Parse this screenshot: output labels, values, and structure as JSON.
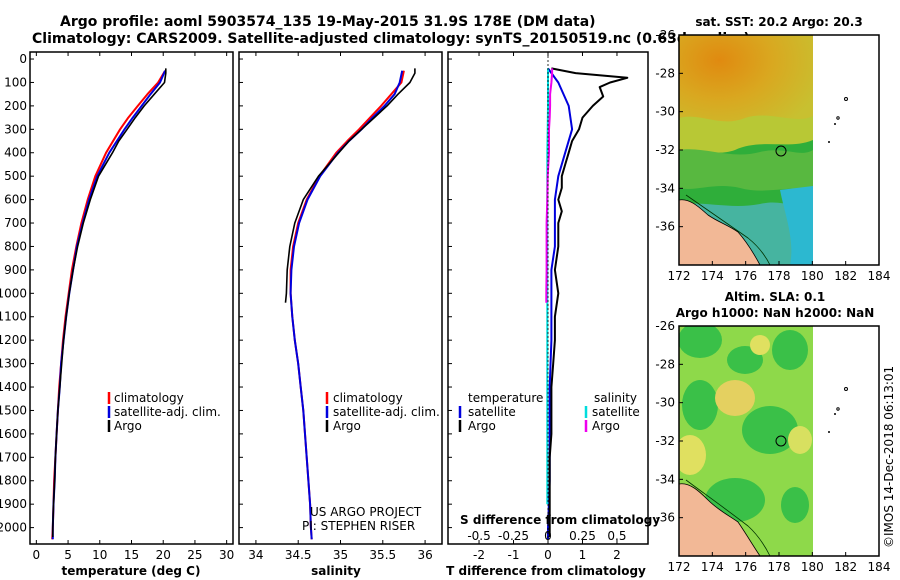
{
  "title_line1": "Argo profile: aoml 5903574_135 19-May-2015 31.9S 178E (DM data)",
  "title_line2": "Climatology: CARS2009. Satellite-adjusted climatology: synTS_20150519.nc (0.63d earlier)",
  "colors": {
    "climatology": "#ff0000",
    "satellite": "#0000dd",
    "argo": "#000000",
    "sal_sat": "#00dddd",
    "sal_argo": "#ee00ee"
  },
  "depth_ticks": [
    0,
    100,
    200,
    300,
    400,
    500,
    600,
    700,
    800,
    900,
    1000,
    1100,
    1200,
    1300,
    1400,
    1500,
    1600,
    1700,
    1800,
    1900,
    2000
  ],
  "legend": {
    "climatology": "climatology",
    "satellite": "satellite-adj. clim.",
    "argo": "Argo"
  },
  "diff_legend": {
    "temperature": "temperature",
    "salinity": "salinity",
    "satellite": "satellite",
    "argo": "Argo"
  },
  "credit_line1": "US ARGO PROJECT",
  "credit_line2": "PI: STEPHEN RISER",
  "s_diff_title": "S difference from climatology",
  "map1_title": "sat. SST: 20.2 Argo: 20.3",
  "map2_title1": "Altim. SLA: 0.1",
  "map2_title2": "Argo h1000: NaN h2000: NaN",
  "stamp": "©IMOS 14-Dec-2018 06:13:01",
  "chart_data": [
    {
      "type": "line",
      "name": "temperature-panel",
      "xlabel": "temperature (deg C)",
      "ylabel": "",
      "xlim": [
        -1,
        31
      ],
      "ylim": [
        2070,
        -30
      ],
      "xticks": [
        0,
        5,
        10,
        15,
        20,
        25,
        30
      ],
      "series": [
        {
          "name": "climatology",
          "depth": [
            50,
            100,
            150,
            200,
            250,
            300,
            400,
            500,
            600,
            700,
            800,
            900,
            1000,
            1100,
            1200,
            1300,
            1400,
            1500,
            1600,
            1700,
            1800,
            1900,
            2000,
            2050
          ],
          "values": [
            20.3,
            19.2,
            17.5,
            16.0,
            14.5,
            13.2,
            11.0,
            9.3,
            8.1,
            7.1,
            6.3,
            5.6,
            5.1,
            4.6,
            4.2,
            3.9,
            3.6,
            3.4,
            3.2,
            3.0,
            2.8,
            2.7,
            2.6,
            2.5
          ]
        },
        {
          "name": "satellite-adj. clim.",
          "depth": [
            50,
            100,
            150,
            200,
            250,
            300,
            400,
            500,
            600,
            700,
            800,
            900,
            1000,
            1100,
            1200,
            1300,
            1400,
            1500,
            1600,
            1700,
            1800,
            1900,
            2000,
            2050
          ],
          "values": [
            20.3,
            19.5,
            18.0,
            16.6,
            15.2,
            13.9,
            11.5,
            9.6,
            8.3,
            7.3,
            6.4,
            5.8,
            5.2,
            4.7,
            4.3,
            3.9,
            3.7,
            3.4,
            3.2,
            3.0,
            2.9,
            2.7,
            2.6,
            2.6
          ]
        },
        {
          "name": "Argo",
          "depth": [
            40,
            60,
            100,
            150,
            200,
            250,
            300,
            350,
            400,
            500,
            600,
            700,
            800,
            900,
            1000,
            1100,
            1200,
            1300,
            1400,
            1500,
            1600,
            1700,
            1800,
            1900,
            2000,
            2040
          ],
          "values": [
            20.4,
            20.4,
            20.2,
            18.6,
            17.0,
            15.6,
            14.3,
            13.0,
            12.0,
            9.8,
            8.5,
            7.4,
            6.5,
            5.8,
            5.2,
            4.7,
            4.3,
            4.0,
            3.7,
            3.4,
            3.2,
            3.0,
            2.9,
            2.7,
            2.6,
            2.6
          ]
        }
      ]
    },
    {
      "type": "line",
      "name": "salinity-panel",
      "xlabel": "salinity",
      "ylabel": "",
      "xlim": [
        33.8,
        36.2
      ],
      "ylim": [
        2070,
        -30
      ],
      "xticks": [
        34,
        34.5,
        35,
        35.5,
        36
      ],
      "series": [
        {
          "name": "climatology",
          "depth": [
            50,
            100,
            150,
            200,
            250,
            300,
            350,
            400,
            500,
            600,
            700,
            800,
            900,
            1000,
            1100,
            1200,
            1300,
            1400,
            1500,
            1600,
            1700,
            1800,
            1900,
            2000,
            2050
          ],
          "values": [
            35.75,
            35.72,
            35.6,
            35.48,
            35.35,
            35.22,
            35.08,
            34.95,
            34.75,
            34.6,
            34.5,
            34.44,
            34.41,
            34.41,
            34.43,
            34.46,
            34.5,
            34.53,
            34.56,
            34.58,
            34.6,
            34.62,
            34.64,
            34.65,
            34.66
          ]
        },
        {
          "name": "satellite-adj. clim.",
          "depth": [
            50,
            100,
            150,
            200,
            250,
            300,
            350,
            400,
            500,
            600,
            700,
            800,
            900,
            1000,
            1100,
            1200,
            1300,
            1400,
            1500,
            1600,
            1700,
            1800,
            1900,
            2000,
            2050
          ],
          "values": [
            35.73,
            35.7,
            35.64,
            35.52,
            35.38,
            35.25,
            35.1,
            34.97,
            34.76,
            34.61,
            34.51,
            34.45,
            34.42,
            34.41,
            34.43,
            34.46,
            34.5,
            34.53,
            34.56,
            34.58,
            34.6,
            34.62,
            34.64,
            34.65,
            34.66
          ]
        },
        {
          "name": "Argo",
          "depth": [
            40,
            60,
            100,
            150,
            200,
            250,
            300,
            350,
            400,
            500,
            600,
            700,
            800,
            900,
            1000,
            1040
          ],
          "values": [
            35.88,
            35.88,
            35.82,
            35.68,
            35.55,
            35.4,
            35.25,
            35.1,
            34.98,
            34.74,
            34.56,
            34.46,
            34.4,
            34.37,
            34.36,
            34.35
          ]
        }
      ]
    },
    {
      "type": "line",
      "name": "difference-panel",
      "xlabel": "T difference from climatology",
      "ylabel": "",
      "xlim": [
        -2.9,
        2.9
      ],
      "ylim": [
        2070,
        -30
      ],
      "xticks": [
        -2,
        -1,
        0,
        1,
        2
      ],
      "top_label": "S difference from climatology",
      "top_ticks": [
        -0.5,
        -0.25,
        0,
        0.25,
        0.5
      ],
      "series": [
        {
          "name": "temperature satellite",
          "depth": [
            40,
            100,
            200,
            300,
            400,
            500,
            600,
            700,
            800,
            900,
            1000,
            1200,
            1400,
            1600,
            1800,
            2000,
            2050
          ],
          "values": [
            0.0,
            0.3,
            0.6,
            0.7,
            0.5,
            0.3,
            0.2,
            0.2,
            0.2,
            0.1,
            0.1,
            0.1,
            0.05,
            0.05,
            0.05,
            0.0,
            0.0
          ]
        },
        {
          "name": "temperature Argo",
          "depth": [
            40,
            60,
            80,
            100,
            120,
            160,
            200,
            250,
            300,
            350,
            400,
            450,
            500,
            550,
            600,
            650,
            700,
            800,
            900,
            1000,
            1100,
            1200,
            1300,
            1400,
            1500,
            1600,
            1700,
            1800,
            1900,
            2000,
            2040
          ],
          "values": [
            0.1,
            0.8,
            2.3,
            1.8,
            1.5,
            1.6,
            1.3,
            1.0,
            0.9,
            0.7,
            0.6,
            0.5,
            0.4,
            0.4,
            0.3,
            0.4,
            0.3,
            0.3,
            0.2,
            0.3,
            0.2,
            0.2,
            0.15,
            0.1,
            0.1,
            0.1,
            0.05,
            0.05,
            0.05,
            0.05,
            0.05
          ]
        },
        {
          "name": "salinity satellite",
          "depth": [
            40,
            100,
            200,
            300,
            400,
            500,
            600,
            700,
            800,
            900,
            1000,
            1200,
            1400,
            1600,
            1800,
            1900
          ],
          "values": [
            0.0,
            0.0,
            0.0,
            -0.01,
            -0.02,
            -0.02,
            -0.02,
            -0.02,
            -0.02,
            -0.02,
            -0.02,
            -0.02,
            -0.02,
            -0.02,
            -0.02,
            -0.02
          ]
        },
        {
          "name": "salinity Argo",
          "depth": [
            40,
            60,
            100,
            150,
            200,
            250,
            300,
            400,
            500,
            600,
            700,
            800,
            900,
            1000,
            1040
          ],
          "values": [
            0.12,
            0.12,
            0.1,
            0.06,
            0.06,
            0.05,
            0.03,
            0.03,
            -0.01,
            -0.02,
            -0.04,
            -0.04,
            -0.04,
            -0.05,
            -0.05
          ]
        }
      ]
    },
    {
      "type": "heatmap",
      "name": "sst-map",
      "title": "sat. SST: 20.2 Argo: 20.3",
      "xticks": [
        172,
        174,
        176,
        178,
        180,
        182,
        184
      ],
      "yticks": [
        -26,
        -28,
        -30,
        -32,
        -34,
        -36
      ],
      "xlim": [
        172,
        184
      ],
      "ylim": [
        -26,
        -38
      ],
      "data_edge_lon": 180.2,
      "float_position": [
        178.0,
        -32.0
      ]
    },
    {
      "type": "heatmap",
      "name": "sla-map",
      "title": "Altim. SLA: 0.1 / Argo h1000: NaN h2000: NaN",
      "xticks": [
        172,
        174,
        176,
        178,
        180,
        182,
        184
      ],
      "yticks": [
        -26,
        -28,
        -30,
        -32,
        -34,
        -36
      ],
      "xlim": [
        172,
        184
      ],
      "ylim": [
        -26,
        -38
      ],
      "data_edge_lon": 180.2,
      "float_position": [
        178.0,
        -32.0
      ]
    }
  ]
}
